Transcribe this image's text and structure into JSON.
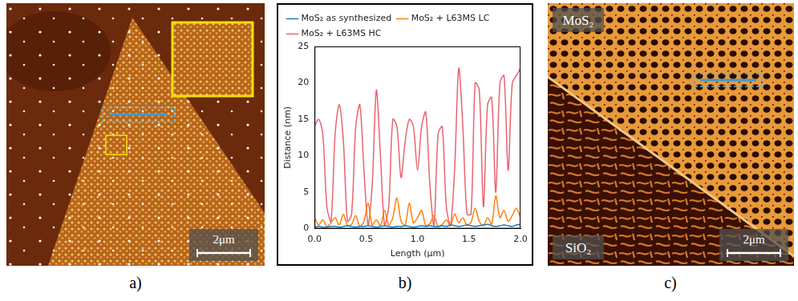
{
  "chart_data": {
    "type": "line",
    "xlabel": "Length (μm)",
    "ylabel": "Distance (nm)",
    "x": [
      0,
      0.04,
      0.08,
      0.12,
      0.16,
      0.2,
      0.24,
      0.28,
      0.32,
      0.36,
      0.4,
      0.44,
      0.48,
      0.52,
      0.56,
      0.6,
      0.64,
      0.68,
      0.72,
      0.76,
      0.8,
      0.84,
      0.88,
      0.92,
      0.96,
      1,
      1.04,
      1.08,
      1.12,
      1.16,
      1.2,
      1.24,
      1.28,
      1.32,
      1.36,
      1.4,
      1.44,
      1.48,
      1.52,
      1.56,
      1.6,
      1.64,
      1.68,
      1.72,
      1.76,
      1.8,
      1.84,
      1.88,
      1.92,
      1.96,
      2
    ],
    "series": [
      {
        "name": "MoS₂ as synthesized",
        "color": "#1f77b4",
        "values": [
          0.2,
          0.3,
          0.2,
          0.2,
          0.3,
          0.3,
          0.2,
          0.3,
          0.4,
          0.3,
          0.2,
          0.3,
          0.3,
          0.4,
          0.3,
          0.2,
          0.3,
          0.4,
          0.3,
          0.2,
          0.3,
          0.3,
          0.4,
          0.3,
          0.2,
          0.3,
          0.4,
          0.3,
          0.4,
          0.3,
          0.3,
          0.4,
          0.3,
          0.5,
          0.4,
          0.3,
          0.4,
          0.5,
          0.4,
          0.3,
          0.4,
          0.5,
          0.6,
          0.4,
          0.3,
          0.4,
          0.5,
          0.4,
          0.3,
          0.5,
          0.6
        ]
      },
      {
        "name": "MoS₂ + L63MS LC",
        "color": "#ff7f0e",
        "values": [
          1.5,
          0.5,
          1.2,
          0.3,
          0.8,
          1.5,
          0.5,
          2,
          0.4,
          0.6,
          1.8,
          0.3,
          1,
          3.5,
          0.5,
          1.2,
          0.4,
          2.5,
          0.5,
          1.5,
          4.2,
          1,
          0.5,
          3.5,
          0.8,
          1.5,
          2.5,
          0.4,
          0.7,
          1.8,
          0.3,
          0.6,
          1.2,
          0.4,
          2,
          0.8,
          1.5,
          0.5,
          0.9,
          2.8,
          1,
          0.4,
          1.5,
          0.6,
          4.5,
          1.5,
          2.5,
          1,
          1.8,
          2.8,
          1.5
        ]
      },
      {
        "name": "MoS₂ + L63MS HC",
        "color": "#e8646f",
        "values": [
          14,
          15,
          13,
          3,
          1,
          13,
          17,
          12,
          1,
          2,
          14,
          17,
          8,
          0.5,
          6,
          19,
          10,
          0.5,
          3,
          15,
          14,
          7,
          12,
          15,
          14,
          8,
          14,
          16,
          6,
          0.5,
          13,
          14,
          3,
          0.5,
          8,
          22,
          14,
          2,
          2,
          20,
          19,
          3,
          17,
          18,
          5,
          20,
          21,
          8,
          20,
          21,
          22
        ]
      }
    ],
    "xlim": [
      0,
      2
    ],
    "xticks": [
      {
        "value": 0,
        "label": "0.0"
      },
      {
        "value": 0.5,
        "label": "0.5"
      },
      {
        "value": 1,
        "label": "1.0"
      },
      {
        "value": 1.5,
        "label": "1.5"
      },
      {
        "value": 2,
        "label": "2.0"
      }
    ],
    "ylim": [
      0,
      25
    ],
    "yticks": [
      0,
      5,
      10,
      15,
      20,
      25
    ],
    "grid": false,
    "legend": "top"
  },
  "figure": {
    "panel_letters": [
      "a)",
      "b)",
      "c)"
    ],
    "image_a": {
      "scale_bar": "2μm"
    },
    "image_c": {
      "scale_bar": "2μm",
      "region_labels": [
        "MoS₂",
        "SiO₂"
      ]
    }
  }
}
